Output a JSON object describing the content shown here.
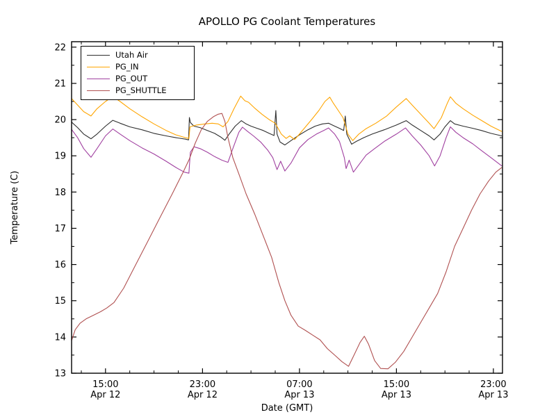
{
  "figure": {
    "background": "#ffffff",
    "frame_color": "#000000"
  },
  "chart_data": {
    "type": "line",
    "title": "APOLLO PG Coolant Temperatures",
    "xlabel": "Date (GMT)",
    "ylabel": "Temperature (C)",
    "x_unit_hours_since": "Apr 12 00:00 GMT",
    "xlim": [
      12.2,
      47.75
    ],
    "ylim": [
      13,
      22.15
    ],
    "yticks": [
      13,
      14,
      15,
      16,
      17,
      18,
      19,
      20,
      21,
      22
    ],
    "y_minor_ticks": [
      13.5,
      14.5,
      15.5,
      16.5,
      17.5,
      18.5,
      19.5,
      20.5,
      21.5
    ],
    "x_major_ticks": [
      {
        "t": 15,
        "time": "15:00",
        "date": "Apr 12"
      },
      {
        "t": 23,
        "time": "23:00",
        "date": "Apr 12"
      },
      {
        "t": 31,
        "time": "07:00",
        "date": "Apr 13"
      },
      {
        "t": 39,
        "time": "15:00",
        "date": "Apr 13"
      },
      {
        "t": 47,
        "time": "23:00",
        "date": "Apr 13"
      }
    ],
    "x_minor_ticks": [
      13,
      17,
      19,
      21,
      25,
      27,
      29,
      33,
      35,
      37,
      41,
      43,
      45
    ],
    "legend": {
      "position": "upper-left",
      "border": true
    },
    "series": [
      {
        "name": "Utah Air",
        "color": "#2e2e2e",
        "points": [
          [
            12.2,
            19.93
          ],
          [
            12.7,
            19.78
          ],
          [
            13.2,
            19.6
          ],
          [
            13.8,
            19.47
          ],
          [
            14.3,
            19.6
          ],
          [
            15.0,
            19.82
          ],
          [
            15.6,
            19.98
          ],
          [
            16.2,
            19.9
          ],
          [
            17,
            19.8
          ],
          [
            18,
            19.72
          ],
          [
            19,
            19.62
          ],
          [
            20,
            19.55
          ],
          [
            20.8,
            19.5
          ],
          [
            21.6,
            19.46
          ],
          [
            21.85,
            19.44
          ],
          [
            21.92,
            20.06
          ],
          [
            22.0,
            19.92
          ],
          [
            22.3,
            19.82
          ],
          [
            22.8,
            19.78
          ],
          [
            23.4,
            19.7
          ],
          [
            24.0,
            19.62
          ],
          [
            24.5,
            19.52
          ],
          [
            24.85,
            19.43
          ],
          [
            25.2,
            19.6
          ],
          [
            25.7,
            19.82
          ],
          [
            26.2,
            19.97
          ],
          [
            26.6,
            19.88
          ],
          [
            27.0,
            19.82
          ],
          [
            27.5,
            19.76
          ],
          [
            28.0,
            19.7
          ],
          [
            28.5,
            19.62
          ],
          [
            28.9,
            19.56
          ],
          [
            29.05,
            20.25
          ],
          [
            29.15,
            19.6
          ],
          [
            29.4,
            19.38
          ],
          [
            29.8,
            19.3
          ],
          [
            30.3,
            19.42
          ],
          [
            31.0,
            19.58
          ],
          [
            31.7,
            19.72
          ],
          [
            32.3,
            19.82
          ],
          [
            32.9,
            19.88
          ],
          [
            33.4,
            19.9
          ],
          [
            33.9,
            19.82
          ],
          [
            34.3,
            19.76
          ],
          [
            34.65,
            19.7
          ],
          [
            34.78,
            20.1
          ],
          [
            34.9,
            19.6
          ],
          [
            35.3,
            19.32
          ],
          [
            35.7,
            19.4
          ],
          [
            36.3,
            19.5
          ],
          [
            37,
            19.6
          ],
          [
            38,
            19.72
          ],
          [
            39,
            19.85
          ],
          [
            39.8,
            19.97
          ],
          [
            40.3,
            19.85
          ],
          [
            41,
            19.7
          ],
          [
            41.7,
            19.55
          ],
          [
            42.1,
            19.44
          ],
          [
            42.6,
            19.6
          ],
          [
            43.0,
            19.8
          ],
          [
            43.45,
            19.97
          ],
          [
            43.8,
            19.88
          ],
          [
            44.5,
            19.82
          ],
          [
            45.3,
            19.76
          ],
          [
            46,
            19.7
          ],
          [
            46.8,
            19.62
          ],
          [
            47.7,
            19.55
          ]
        ]
      },
      {
        "name": "PG_IN",
        "color": "#ffa500",
        "points": [
          [
            12.2,
            20.58
          ],
          [
            12.7,
            20.4
          ],
          [
            13.2,
            20.22
          ],
          [
            13.8,
            20.1
          ],
          [
            14.3,
            20.3
          ],
          [
            15.0,
            20.5
          ],
          [
            15.6,
            20.64
          ],
          [
            16.2,
            20.5
          ],
          [
            17,
            20.3
          ],
          [
            18,
            20.08
          ],
          [
            19,
            19.88
          ],
          [
            20,
            19.7
          ],
          [
            20.8,
            19.58
          ],
          [
            21.6,
            19.5
          ],
          [
            21.88,
            19.48
          ],
          [
            21.97,
            19.8
          ],
          [
            22.5,
            19.85
          ],
          [
            23.2,
            19.88
          ],
          [
            23.8,
            19.9
          ],
          [
            24.3,
            19.88
          ],
          [
            24.7,
            19.8
          ],
          [
            25.1,
            19.95
          ],
          [
            25.6,
            20.3
          ],
          [
            26.15,
            20.65
          ],
          [
            26.5,
            20.52
          ],
          [
            26.8,
            20.48
          ],
          [
            27.3,
            20.32
          ],
          [
            27.9,
            20.15
          ],
          [
            28.5,
            20.0
          ],
          [
            29.0,
            19.9
          ],
          [
            29.5,
            19.6
          ],
          [
            29.9,
            19.48
          ],
          [
            30.2,
            19.55
          ],
          [
            30.6,
            19.45
          ],
          [
            31.0,
            19.6
          ],
          [
            31.5,
            19.8
          ],
          [
            32.0,
            20.0
          ],
          [
            32.6,
            20.25
          ],
          [
            33.1,
            20.5
          ],
          [
            33.5,
            20.62
          ],
          [
            33.8,
            20.45
          ],
          [
            34.2,
            20.25
          ],
          [
            34.6,
            20.05
          ],
          [
            35.0,
            19.6
          ],
          [
            35.4,
            19.42
          ],
          [
            35.9,
            19.6
          ],
          [
            36.5,
            19.75
          ],
          [
            37.3,
            19.9
          ],
          [
            38.2,
            20.1
          ],
          [
            39.0,
            20.35
          ],
          [
            39.8,
            20.58
          ],
          [
            40.3,
            20.4
          ],
          [
            41,
            20.15
          ],
          [
            41.7,
            19.9
          ],
          [
            42.1,
            19.75
          ],
          [
            42.7,
            20.05
          ],
          [
            43.2,
            20.45
          ],
          [
            43.45,
            20.63
          ],
          [
            43.9,
            20.45
          ],
          [
            44.5,
            20.3
          ],
          [
            45.3,
            20.12
          ],
          [
            46,
            19.98
          ],
          [
            46.8,
            19.82
          ],
          [
            47.7,
            19.67
          ]
        ]
      },
      {
        "name": "PG_OUT",
        "color": "#a040a0",
        "points": [
          [
            12.2,
            19.73
          ],
          [
            12.7,
            19.5
          ],
          [
            13.2,
            19.2
          ],
          [
            13.8,
            18.96
          ],
          [
            14.3,
            19.2
          ],
          [
            15.0,
            19.55
          ],
          [
            15.6,
            19.74
          ],
          [
            16.2,
            19.6
          ],
          [
            17,
            19.42
          ],
          [
            18,
            19.22
          ],
          [
            19,
            19.05
          ],
          [
            20,
            18.85
          ],
          [
            20.8,
            18.68
          ],
          [
            21.5,
            18.55
          ],
          [
            21.88,
            18.52
          ],
          [
            22.0,
            19.1
          ],
          [
            22.3,
            19.25
          ],
          [
            22.8,
            19.2
          ],
          [
            23.4,
            19.1
          ],
          [
            24.0,
            18.98
          ],
          [
            24.6,
            18.88
          ],
          [
            25.1,
            18.82
          ],
          [
            25.5,
            19.2
          ],
          [
            26.0,
            19.65
          ],
          [
            26.3,
            19.79
          ],
          [
            26.7,
            19.68
          ],
          [
            27.2,
            19.55
          ],
          [
            27.8,
            19.38
          ],
          [
            28.4,
            19.15
          ],
          [
            28.8,
            18.95
          ],
          [
            29.15,
            18.62
          ],
          [
            29.45,
            18.85
          ],
          [
            29.8,
            18.58
          ],
          [
            30.3,
            18.8
          ],
          [
            31.0,
            19.22
          ],
          [
            31.7,
            19.45
          ],
          [
            32.4,
            19.6
          ],
          [
            33.0,
            19.7
          ],
          [
            33.4,
            19.77
          ],
          [
            33.9,
            19.6
          ],
          [
            34.3,
            19.4
          ],
          [
            34.7,
            18.95
          ],
          [
            34.85,
            18.65
          ],
          [
            35.1,
            18.88
          ],
          [
            35.45,
            18.55
          ],
          [
            35.9,
            18.75
          ],
          [
            36.5,
            19.02
          ],
          [
            37.2,
            19.2
          ],
          [
            38,
            19.4
          ],
          [
            39,
            19.6
          ],
          [
            39.75,
            19.77
          ],
          [
            40.3,
            19.55
          ],
          [
            41,
            19.3
          ],
          [
            41.7,
            19.0
          ],
          [
            42.15,
            18.72
          ],
          [
            42.6,
            19.0
          ],
          [
            43.1,
            19.5
          ],
          [
            43.45,
            19.8
          ],
          [
            43.9,
            19.65
          ],
          [
            44.5,
            19.5
          ],
          [
            45.3,
            19.33
          ],
          [
            46,
            19.15
          ],
          [
            46.8,
            18.95
          ],
          [
            47.7,
            18.72
          ]
        ]
      },
      {
        "name": "PG_SHUTTLE",
        "color": "#b05050",
        "points": [
          [
            12.2,
            13.9
          ],
          [
            12.5,
            14.2
          ],
          [
            12.9,
            14.38
          ],
          [
            13.4,
            14.5
          ],
          [
            14.0,
            14.6
          ],
          [
            14.6,
            14.7
          ],
          [
            15.1,
            14.8
          ],
          [
            15.7,
            14.95
          ],
          [
            16.5,
            15.35
          ],
          [
            17.5,
            16.0
          ],
          [
            18.5,
            16.65
          ],
          [
            19.5,
            17.3
          ],
          [
            20.5,
            17.95
          ],
          [
            21.4,
            18.55
          ],
          [
            21.9,
            18.9
          ],
          [
            22.4,
            19.35
          ],
          [
            22.9,
            19.72
          ],
          [
            23.4,
            19.95
          ],
          [
            23.9,
            20.08
          ],
          [
            24.3,
            20.15
          ],
          [
            24.6,
            20.17
          ],
          [
            24.85,
            19.95
          ],
          [
            25.1,
            19.5
          ],
          [
            25.5,
            18.95
          ],
          [
            26.0,
            18.5
          ],
          [
            26.6,
            17.95
          ],
          [
            27.3,
            17.4
          ],
          [
            28.0,
            16.8
          ],
          [
            28.7,
            16.2
          ],
          [
            29.3,
            15.5
          ],
          [
            29.8,
            15.0
          ],
          [
            30.3,
            14.6
          ],
          [
            30.9,
            14.3
          ],
          [
            31.5,
            14.18
          ],
          [
            32.1,
            14.05
          ],
          [
            32.7,
            13.92
          ],
          [
            33.3,
            13.68
          ],
          [
            33.9,
            13.5
          ],
          [
            34.5,
            13.32
          ],
          [
            35.05,
            13.19
          ],
          [
            35.5,
            13.5
          ],
          [
            36.0,
            13.85
          ],
          [
            36.35,
            14.02
          ],
          [
            36.7,
            13.8
          ],
          [
            37.2,
            13.35
          ],
          [
            37.7,
            13.13
          ],
          [
            38.3,
            13.12
          ],
          [
            38.9,
            13.3
          ],
          [
            39.6,
            13.6
          ],
          [
            40.3,
            14.0
          ],
          [
            41.0,
            14.4
          ],
          [
            41.7,
            14.8
          ],
          [
            42.4,
            15.2
          ],
          [
            43.1,
            15.8
          ],
          [
            43.8,
            16.5
          ],
          [
            44.5,
            17.0
          ],
          [
            45.2,
            17.5
          ],
          [
            45.9,
            17.95
          ],
          [
            46.6,
            18.3
          ],
          [
            47.2,
            18.55
          ],
          [
            47.7,
            18.68
          ]
        ]
      }
    ]
  }
}
